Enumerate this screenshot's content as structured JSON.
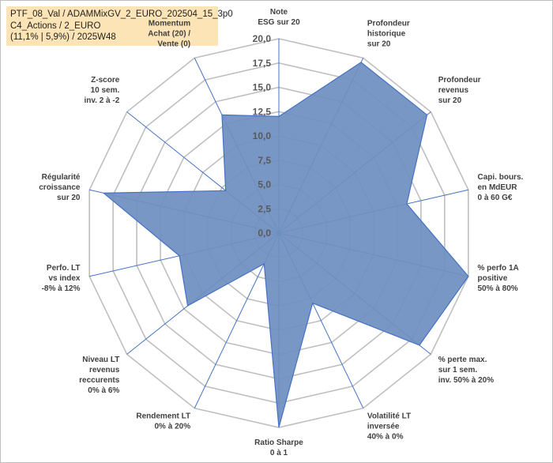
{
  "header": {
    "line1": "PTF_08_Val / ADAMMixGV_2_EURO_202504_15_3p0",
    "line2": "C4_Actions / 2_EURO",
    "line3": "(11,1% | 5,9%) / 2025W48"
  },
  "chart_data": {
    "type": "radar",
    "rmax": 20,
    "ticks": [
      "0,0",
      "2,5",
      "5,0",
      "7,5",
      "10,0",
      "12,5",
      "15,0",
      "17,5",
      "20,0"
    ],
    "fill_color": "#6f8fbf",
    "line_color": "#4472c4",
    "grid_color": "#bfbfbf",
    "axes": [
      {
        "label": [
          "Note",
          "ESG sur 20"
        ],
        "value": 12
      },
      {
        "label": [
          "Profondeur",
          "historique",
          "sur 20"
        ],
        "value": 19.5
      },
      {
        "label": [
          "Profondeur",
          "revenus",
          "sur 20"
        ],
        "value": 19.5
      },
      {
        "label": [
          "Capi. bours.",
          "en MdEUR",
          "0 à 60 G€"
        ],
        "value": 13.5
      },
      {
        "label": [
          "% perfo 1A",
          "positive",
          "50% à 80%"
        ],
        "value": 20
      },
      {
        "label": [
          "% perte max.",
          "sur 1 sem.",
          "inv. 50% à 20%"
        ],
        "value": 18.5
      },
      {
        "label": [
          "Volatilité LT",
          "inversée",
          "40% à 0%"
        ],
        "value": 8
      },
      {
        "label": [
          "Ratio Sharpe",
          "0 à 1"
        ],
        "value": 20
      },
      {
        "label": [
          "Rendement LT",
          "0% à 20%"
        ],
        "value": 3.5
      },
      {
        "label": [
          "Niveau LT",
          "revenus",
          "reccurents",
          "0% à 6%"
        ],
        "value": 12
      },
      {
        "label": [
          "Perfo. LT",
          "vs index",
          "-8% à 12%"
        ],
        "value": 10.5
      },
      {
        "label": [
          "Régularité",
          "croissance",
          "sur 20"
        ],
        "value": 18.5
      },
      {
        "label": [
          "Z-score",
          "10 sem.",
          "inv. 2 à -2"
        ],
        "value": 7
      },
      {
        "label": [
          "Momentum",
          "Achat (20) /",
          "Vente (0)"
        ],
        "value": 13.5
      }
    ]
  }
}
